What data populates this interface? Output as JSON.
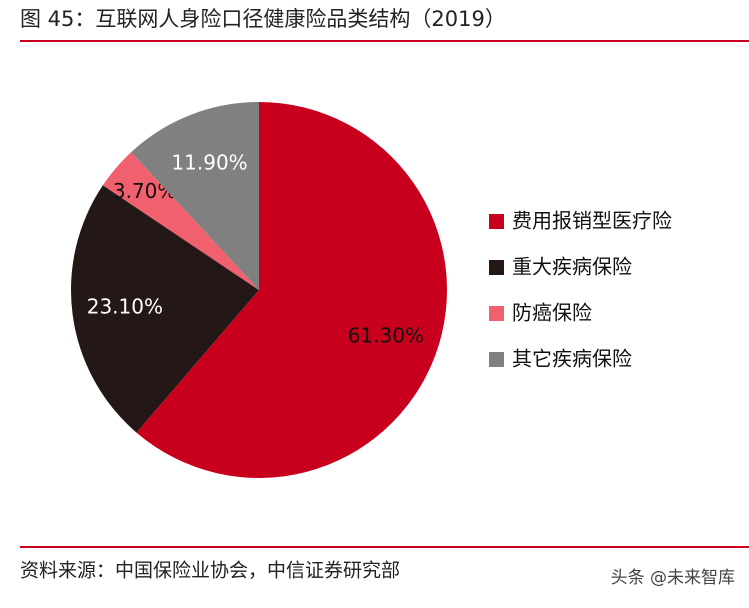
{
  "chart_data": {
    "type": "pie",
    "title": "图 45：互联网人身险口径健康险品类结构（2019）",
    "categories": [
      "费用报销型医疗险",
      "重大疾病保险",
      "防癌保险",
      "其它疾病保险"
    ],
    "values": [
      61.3,
      23.1,
      3.7,
      11.9
    ],
    "value_labels": [
      "61.30%",
      "23.10%",
      "3.70%",
      "11.90%"
    ],
    "colors": [
      "#c8001e",
      "#231815",
      "#f0606e",
      "#808080"
    ],
    "legend": "right"
  },
  "footer": {
    "source": "资料来源：中国保险业协会，中信证券研究部",
    "watermark": "头条 @未来智库"
  }
}
